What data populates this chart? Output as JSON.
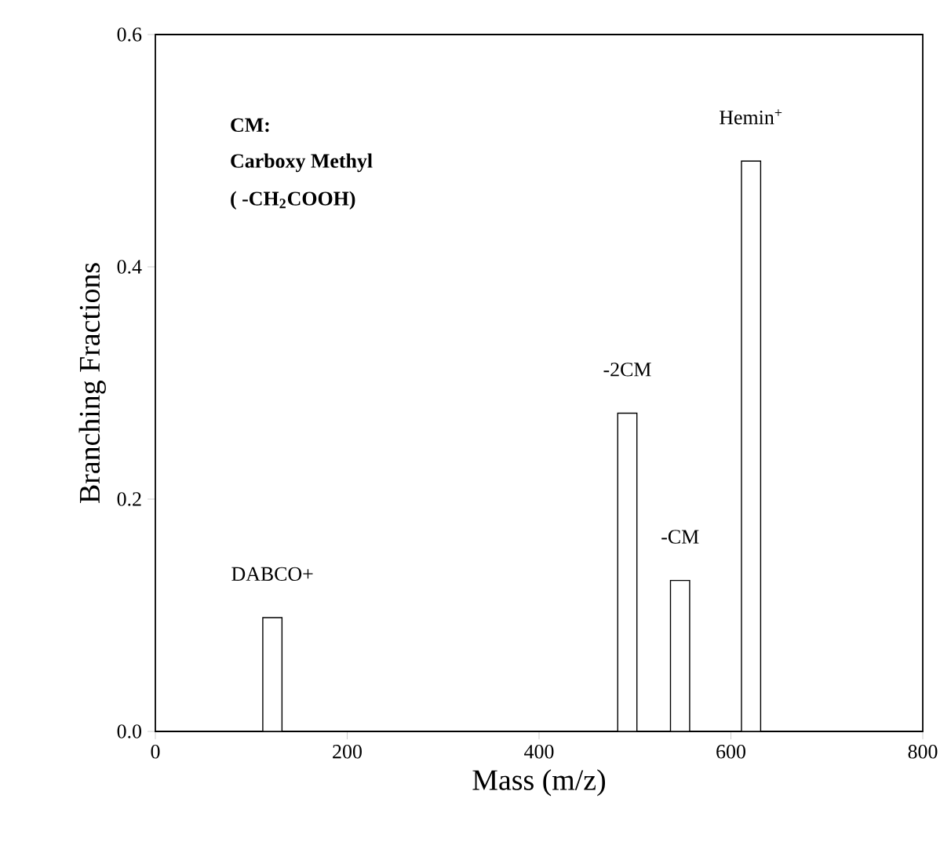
{
  "chart_data": {
    "type": "bar",
    "xlabel": "Mass (m/z)",
    "ylabel": "Branching Fractions",
    "x": [
      122,
      492,
      547,
      621
    ],
    "values": [
      0.098,
      0.274,
      0.13,
      0.491
    ],
    "color": "#ffffff",
    "xlim": [
      0,
      800
    ],
    "xticks": [
      0,
      200,
      400,
      600,
      800
    ],
    "ylim": [
      0,
      0.6
    ],
    "yticks": [
      {
        "value": 0,
        "label": "0.0"
      },
      0.2,
      0.4,
      0.6
    ],
    "annotations": [
      "**CM:**",
      "**Carboxy Methyl**",
      "**( -CH$_{2}$COOH)**",
      {
        "text": "DABCO+",
        "x": 122,
        "y": 0.098
      },
      {
        "text": "-2CM",
        "x": 492,
        "y": 0.274
      },
      {
        "text": "-CM",
        "x": 547,
        "y": 0.13
      },
      {
        "text": "Hemin$^{+}$",
        "x": 621,
        "y": 0.491
      }
    ]
  }
}
